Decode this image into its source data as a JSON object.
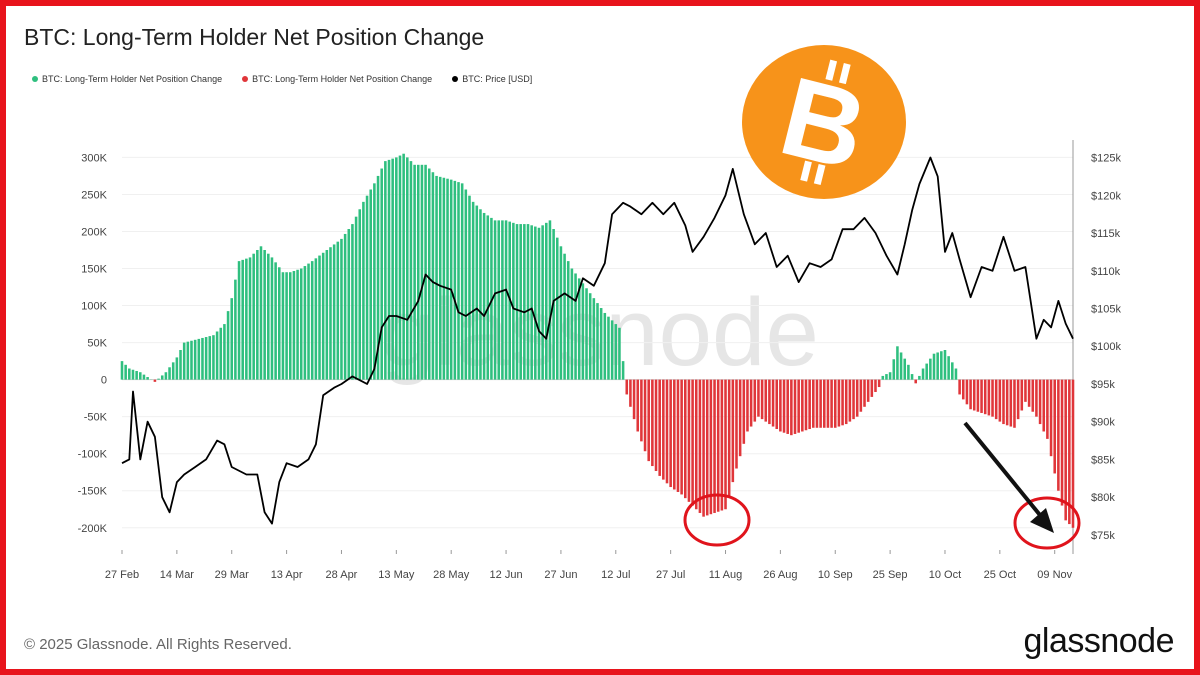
{
  "title": "BTC: Long-Term Holder Net Position Change",
  "legend": [
    {
      "label": "BTC: Long-Term Holder Net Position Change",
      "color": "#2fbf7f"
    },
    {
      "label": "BTC: Long-Term Holder Net Position Change",
      "color": "#e0363a"
    },
    {
      "label": "BTC: Price [USD]",
      "color": "#000000"
    }
  ],
  "footer": {
    "copyright": "© 2025 Glassnode. All Rights Reserved.",
    "brand": "glassnode"
  },
  "watermark": "glassnode",
  "logo_symbol": "B",
  "colors": {
    "positive": "#2fbf7f",
    "negative": "#e0363a",
    "price": "#000000",
    "frame": "#e8141c",
    "logo": "#f7931a"
  },
  "chart_data": {
    "type": "bar",
    "title": "BTC: Long-Term Holder Net Position Change",
    "x_tick_labels": [
      "27 Feb",
      "14 Mar",
      "29 Mar",
      "13 Apr",
      "28 Apr",
      "13 May",
      "28 May",
      "12 Jun",
      "27 Jun",
      "12 Jul",
      "27 Jul",
      "11 Aug",
      "26 Aug",
      "10 Sep",
      "25 Sep",
      "10 Oct",
      "25 Oct",
      "09 Nov"
    ],
    "y_left_ticks": [
      "300K",
      "250K",
      "200K",
      "150K",
      "100K",
      "50K",
      "0",
      "-50K",
      "-100K",
      "-150K",
      "-200K"
    ],
    "y_right_ticks": [
      "$125k",
      "$120k",
      "$115k",
      "$110k",
      "$105k",
      "$100k",
      "$95k",
      "$90k",
      "$85k",
      "$80k",
      "$75k"
    ],
    "ylim_left": [
      -230000,
      310000
    ],
    "ylim_right": [
      73000,
      126000
    ],
    "x_range": [
      "27 Feb",
      "14 Nov"
    ],
    "net_position_change_series": [
      {
        "x": "27 Feb",
        "y": 25000
      },
      {
        "x": "01 Mar",
        "y": 15000
      },
      {
        "x": "04 Mar",
        "y": 10000
      },
      {
        "x": "08 Mar",
        "y": -3000
      },
      {
        "x": "11 Mar",
        "y": 10000
      },
      {
        "x": "14 Mar",
        "y": 30000
      },
      {
        "x": "16 Mar",
        "y": 50000
      },
      {
        "x": "20 Mar",
        "y": 55000
      },
      {
        "x": "24 Mar",
        "y": 60000
      },
      {
        "x": "27 Mar",
        "y": 75000
      },
      {
        "x": "29 Mar",
        "y": 110000
      },
      {
        "x": "31 Mar",
        "y": 160000
      },
      {
        "x": "03 Apr",
        "y": 165000
      },
      {
        "x": "06 Apr",
        "y": 180000
      },
      {
        "x": "09 Apr",
        "y": 165000
      },
      {
        "x": "12 Apr",
        "y": 145000
      },
      {
        "x": "14 Apr",
        "y": 145000
      },
      {
        "x": "17 Apr",
        "y": 150000
      },
      {
        "x": "20 Apr",
        "y": 160000
      },
      {
        "x": "24 Apr",
        "y": 175000
      },
      {
        "x": "28 Apr",
        "y": 190000
      },
      {
        "x": "01 May",
        "y": 210000
      },
      {
        "x": "04 May",
        "y": 240000
      },
      {
        "x": "07 May",
        "y": 265000
      },
      {
        "x": "10 May",
        "y": 295000
      },
      {
        "x": "13 May",
        "y": 300000
      },
      {
        "x": "15 May",
        "y": 305000
      },
      {
        "x": "18 May",
        "y": 290000
      },
      {
        "x": "21 May",
        "y": 290000
      },
      {
        "x": "24 May",
        "y": 275000
      },
      {
        "x": "28 May",
        "y": 270000
      },
      {
        "x": "31 May",
        "y": 265000
      },
      {
        "x": "03 Jun",
        "y": 240000
      },
      {
        "x": "06 Jun",
        "y": 225000
      },
      {
        "x": "09 Jun",
        "y": 215000
      },
      {
        "x": "12 Jun",
        "y": 215000
      },
      {
        "x": "15 Jun",
        "y": 210000
      },
      {
        "x": "18 Jun",
        "y": 210000
      },
      {
        "x": "21 Jun",
        "y": 205000
      },
      {
        "x": "24 Jun",
        "y": 215000
      },
      {
        "x": "27 Jun",
        "y": 180000
      },
      {
        "x": "30 Jun",
        "y": 150000
      },
      {
        "x": "03 Jul",
        "y": 130000
      },
      {
        "x": "06 Jul",
        "y": 110000
      },
      {
        "x": "09 Jul",
        "y": 90000
      },
      {
        "x": "12 Jul",
        "y": 75000
      },
      {
        "x": "13 Jul",
        "y": 70000
      },
      {
        "x": "15 Jul",
        "y": -20000
      },
      {
        "x": "18 Jul",
        "y": -70000
      },
      {
        "x": "21 Jul",
        "y": -110000
      },
      {
        "x": "24 Jul",
        "y": -130000
      },
      {
        "x": "27 Jul",
        "y": -145000
      },
      {
        "x": "30 Jul",
        "y": -155000
      },
      {
        "x": "02 Aug",
        "y": -170000
      },
      {
        "x": "05 Aug",
        "y": -185000
      },
      {
        "x": "08 Aug",
        "y": -180000
      },
      {
        "x": "11 Aug",
        "y": -175000
      },
      {
        "x": "14 Aug",
        "y": -120000
      },
      {
        "x": "17 Aug",
        "y": -70000
      },
      {
        "x": "20 Aug",
        "y": -50000
      },
      {
        "x": "23 Aug",
        "y": -60000
      },
      {
        "x": "26 Aug",
        "y": -70000
      },
      {
        "x": "29 Aug",
        "y": -75000
      },
      {
        "x": "01 Sep",
        "y": -70000
      },
      {
        "x": "04 Sep",
        "y": -65000
      },
      {
        "x": "07 Sep",
        "y": -65000
      },
      {
        "x": "10 Sep",
        "y": -65000
      },
      {
        "x": "13 Sep",
        "y": -60000
      },
      {
        "x": "16 Sep",
        "y": -50000
      },
      {
        "x": "19 Sep",
        "y": -30000
      },
      {
        "x": "22 Sep",
        "y": -10000
      },
      {
        "x": "23 Sep",
        "y": 5000
      },
      {
        "x": "25 Sep",
        "y": 10000
      },
      {
        "x": "27 Sep",
        "y": 45000
      },
      {
        "x": "30 Sep",
        "y": 20000
      },
      {
        "x": "02 Oct",
        "y": -5000
      },
      {
        "x": "04 Oct",
        "y": 15000
      },
      {
        "x": "07 Oct",
        "y": 35000
      },
      {
        "x": "10 Oct",
        "y": 40000
      },
      {
        "x": "13 Oct",
        "y": 15000
      },
      {
        "x": "14 Oct",
        "y": -20000
      },
      {
        "x": "17 Oct",
        "y": -40000
      },
      {
        "x": "20 Oct",
        "y": -45000
      },
      {
        "x": "23 Oct",
        "y": -50000
      },
      {
        "x": "26 Oct",
        "y": -60000
      },
      {
        "x": "29 Oct",
        "y": -65000
      },
      {
        "x": "01 Nov",
        "y": -30000
      },
      {
        "x": "04 Nov",
        "y": -50000
      },
      {
        "x": "07 Nov",
        "y": -80000
      },
      {
        "x": "10 Nov",
        "y": -150000
      },
      {
        "x": "12 Nov",
        "y": -190000
      },
      {
        "x": "14 Nov",
        "y": -200000
      }
    ],
    "price_series": [
      {
        "x": "27 Feb",
        "y": 84500
      },
      {
        "x": "01 Mar",
        "y": 85000
      },
      {
        "x": "02 Mar",
        "y": 94000
      },
      {
        "x": "04 Mar",
        "y": 85000
      },
      {
        "x": "06 Mar",
        "y": 90000
      },
      {
        "x": "08 Mar",
        "y": 88000
      },
      {
        "x": "10 Mar",
        "y": 80000
      },
      {
        "x": "12 Mar",
        "y": 78000
      },
      {
        "x": "14 Mar",
        "y": 82000
      },
      {
        "x": "16 Mar",
        "y": 83000
      },
      {
        "x": "19 Mar",
        "y": 84000
      },
      {
        "x": "22 Mar",
        "y": 85000
      },
      {
        "x": "25 Mar",
        "y": 87500
      },
      {
        "x": "27 Mar",
        "y": 87000
      },
      {
        "x": "29 Mar",
        "y": 84000
      },
      {
        "x": "02 Apr",
        "y": 83000
      },
      {
        "x": "05 Apr",
        "y": 83000
      },
      {
        "x": "07 Apr",
        "y": 78000
      },
      {
        "x": "09 Apr",
        "y": 76500
      },
      {
        "x": "11 Apr",
        "y": 82000
      },
      {
        "x": "13 Apr",
        "y": 84500
      },
      {
        "x": "16 Apr",
        "y": 84000
      },
      {
        "x": "19 Apr",
        "y": 85000
      },
      {
        "x": "21 Apr",
        "y": 87000
      },
      {
        "x": "23 Apr",
        "y": 93500
      },
      {
        "x": "26 Apr",
        "y": 94500
      },
      {
        "x": "28 Apr",
        "y": 95000
      },
      {
        "x": "01 May",
        "y": 96000
      },
      {
        "x": "03 May",
        "y": 95500
      },
      {
        "x": "05 May",
        "y": 95000
      },
      {
        "x": "07 May",
        "y": 97000
      },
      {
        "x": "09 May",
        "y": 102500
      },
      {
        "x": "11 May",
        "y": 104000
      },
      {
        "x": "13 May",
        "y": 104000
      },
      {
        "x": "16 May",
        "y": 103500
      },
      {
        "x": "19 May",
        "y": 106000
      },
      {
        "x": "21 May",
        "y": 109500
      },
      {
        "x": "23 May",
        "y": 108500
      },
      {
        "x": "25 May",
        "y": 108000
      },
      {
        "x": "28 May",
        "y": 107500
      },
      {
        "x": "30 May",
        "y": 104500
      },
      {
        "x": "01 Jun",
        "y": 104000
      },
      {
        "x": "04 Jun",
        "y": 105000
      },
      {
        "x": "06 Jun",
        "y": 104000
      },
      {
        "x": "09 Jun",
        "y": 107000
      },
      {
        "x": "12 Jun",
        "y": 107500
      },
      {
        "x": "14 Jun",
        "y": 105000
      },
      {
        "x": "17 Jun",
        "y": 104500
      },
      {
        "x": "19 Jun",
        "y": 105000
      },
      {
        "x": "21 Jun",
        "y": 102000
      },
      {
        "x": "23 Jun",
        "y": 101000
      },
      {
        "x": "25 Jun",
        "y": 106000
      },
      {
        "x": "28 Jun",
        "y": 107000
      },
      {
        "x": "01 Jul",
        "y": 106000
      },
      {
        "x": "03 Jul",
        "y": 109000
      },
      {
        "x": "06 Jul",
        "y": 108000
      },
      {
        "x": "09 Jul",
        "y": 111000
      },
      {
        "x": "11 Jul",
        "y": 117500
      },
      {
        "x": "14 Jul",
        "y": 119000
      },
      {
        "x": "16 Jul",
        "y": 118500
      },
      {
        "x": "19 Jul",
        "y": 117500
      },
      {
        "x": "22 Jul",
        "y": 119000
      },
      {
        "x": "25 Jul",
        "y": 117500
      },
      {
        "x": "28 Jul",
        "y": 119000
      },
      {
        "x": "31 Jul",
        "y": 116000
      },
      {
        "x": "02 Aug",
        "y": 112500
      },
      {
        "x": "05 Aug",
        "y": 114500
      },
      {
        "x": "08 Aug",
        "y": 117000
      },
      {
        "x": "11 Aug",
        "y": 120000
      },
      {
        "x": "13 Aug",
        "y": 123500
      },
      {
        "x": "16 Aug",
        "y": 117500
      },
      {
        "x": "19 Aug",
        "y": 113500
      },
      {
        "x": "22 Aug",
        "y": 115000
      },
      {
        "x": "25 Aug",
        "y": 110500
      },
      {
        "x": "28 Aug",
        "y": 112000
      },
      {
        "x": "31 Aug",
        "y": 108500
      },
      {
        "x": "03 Sep",
        "y": 111000
      },
      {
        "x": "06 Sep",
        "y": 110500
      },
      {
        "x": "09 Sep",
        "y": 111500
      },
      {
        "x": "12 Sep",
        "y": 115500
      },
      {
        "x": "15 Sep",
        "y": 115500
      },
      {
        "x": "18 Sep",
        "y": 117000
      },
      {
        "x": "21 Sep",
        "y": 115000
      },
      {
        "x": "24 Sep",
        "y": 112000
      },
      {
        "x": "27 Sep",
        "y": 109500
      },
      {
        "x": "29 Sep",
        "y": 113500
      },
      {
        "x": "01 Oct",
        "y": 118000
      },
      {
        "x": "03 Oct",
        "y": 121500
      },
      {
        "x": "06 Oct",
        "y": 125000
      },
      {
        "x": "08 Oct",
        "y": 122500
      },
      {
        "x": "10 Oct",
        "y": 112500
      },
      {
        "x": "12 Oct",
        "y": 115000
      },
      {
        "x": "14 Oct",
        "y": 111500
      },
      {
        "x": "17 Oct",
        "y": 106500
      },
      {
        "x": "20 Oct",
        "y": 110500
      },
      {
        "x": "23 Oct",
        "y": 110000
      },
      {
        "x": "26 Oct",
        "y": 114500
      },
      {
        "x": "29 Oct",
        "y": 110000
      },
      {
        "x": "01 Nov",
        "y": 110500
      },
      {
        "x": "04 Nov",
        "y": 101000
      },
      {
        "x": "06 Nov",
        "y": 103500
      },
      {
        "x": "08 Nov",
        "y": 102500
      },
      {
        "x": "10 Nov",
        "y": 106000
      },
      {
        "x": "12 Nov",
        "y": 103000
      },
      {
        "x": "14 Nov",
        "y": 101000
      }
    ]
  }
}
